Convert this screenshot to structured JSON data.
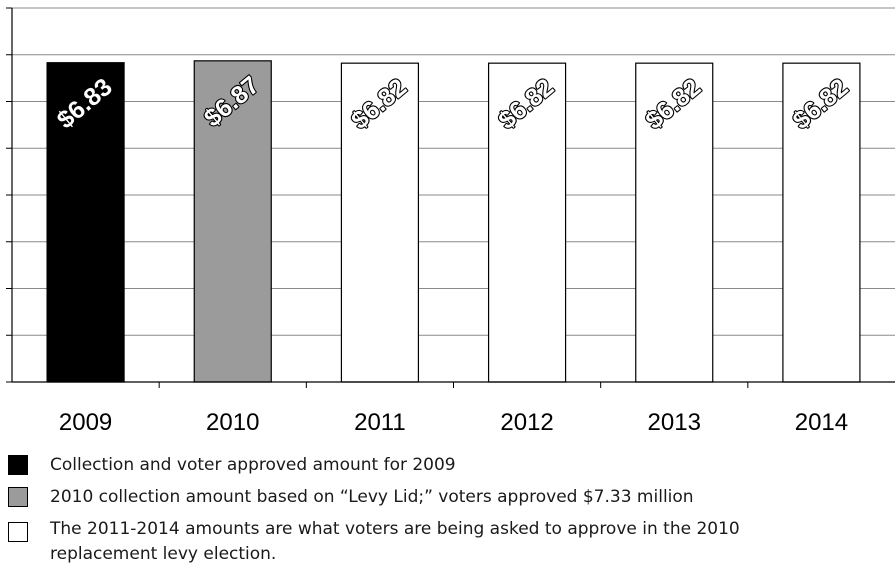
{
  "chart_data": {
    "type": "bar",
    "categories": [
      "2009",
      "2010",
      "2011",
      "2012",
      "2013",
      "2014"
    ],
    "values": [
      6.83,
      6.87,
      6.82,
      6.82,
      6.82,
      6.82
    ],
    "data_labels": [
      "$6.83",
      "$6.87",
      "$6.82",
      "$6.82",
      "$6.82",
      "$6.82"
    ],
    "bar_colors": [
      "#000000",
      "#9b9b9b",
      "#ffffff",
      "#ffffff",
      "#ffffff",
      "#ffffff"
    ],
    "data_label_color": "#ffffff",
    "data_label_outline": "#000000",
    "ylim": [
      0,
      8
    ],
    "grid": true,
    "y_tick_labels_shown": false,
    "title": "",
    "xlabel": "",
    "ylabel": ""
  },
  "legend": {
    "items": [
      {
        "color": "#000000",
        "text": "Collection and voter approved amount for 2009"
      },
      {
        "color": "#9b9b9b",
        "text": "2010 collection amount based on “Levy Lid;” voters approved $7.33 million"
      },
      {
        "color": "#ffffff",
        "text": "The 2011-2014 amounts are what voters are being asked to approve in the 2010\nreplacement levy election."
      }
    ]
  }
}
